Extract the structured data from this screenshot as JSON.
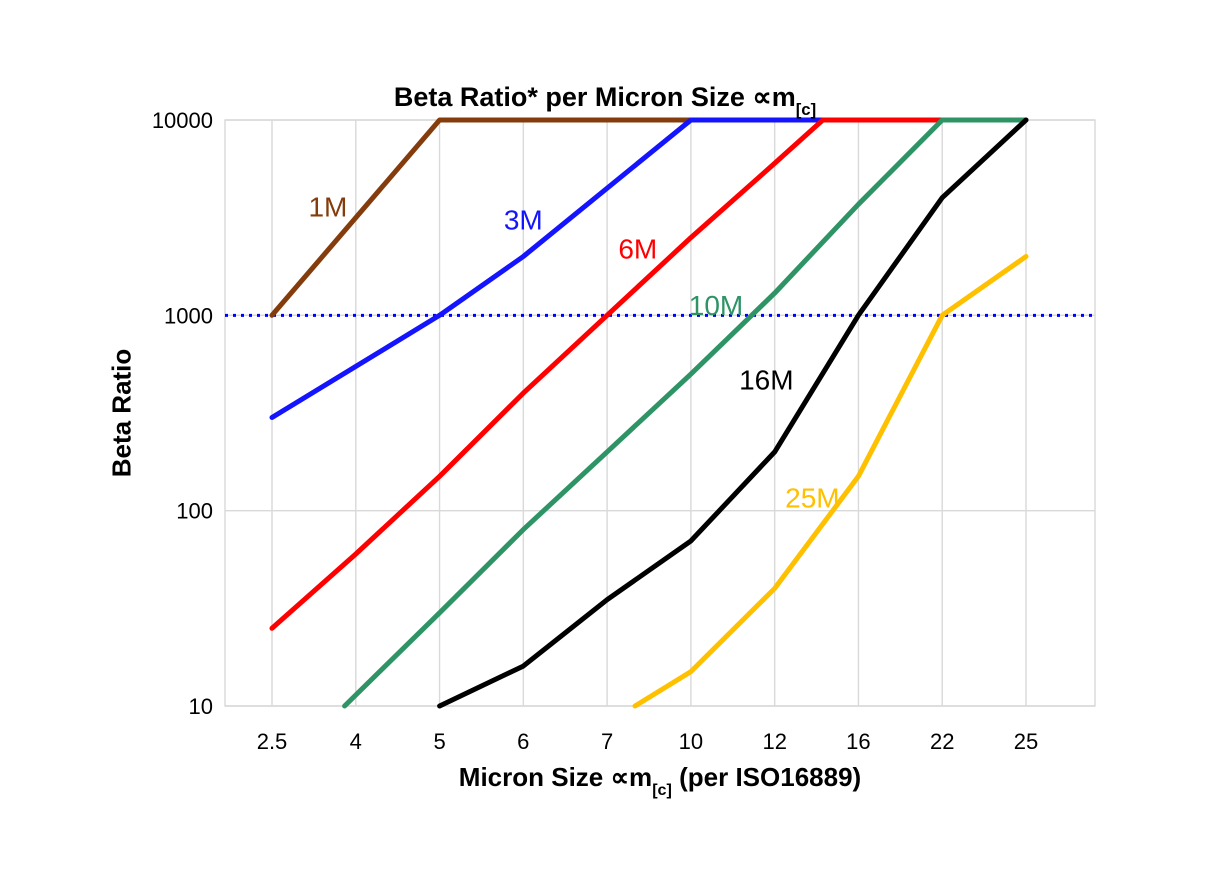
{
  "page": {
    "background": "#ffffff"
  },
  "chart_data": {
    "type": "line",
    "title": {
      "prefix": "Beta Ratio* per Micron Size ",
      "symbol": "∝m",
      "sub": "[c]"
    },
    "xlabel": {
      "prefix": "Micron Size ",
      "symbol": "∝m",
      "sub": "[c]",
      "suffix": " (per ISO16889)"
    },
    "ylabel": "Beta Ratio",
    "x_axis": {
      "scale": "categorical",
      "categories": [
        2.5,
        4,
        5,
        6,
        7,
        10,
        12,
        16,
        22,
        25
      ]
    },
    "y_axis": {
      "scale": "log",
      "min": 10,
      "max": 10000,
      "ticks": [
        10,
        100,
        1000,
        10000
      ]
    },
    "grid": {
      "color": "#d9d9d9",
      "vertical": true,
      "horizontal": true
    },
    "reference_line": {
      "y": 1000,
      "color": "#0000ff",
      "style": "dotted"
    },
    "series": [
      {
        "name": "1M",
        "color": "#843C0C",
        "label_at": {
          "micron": 3.5,
          "beta": 3600
        },
        "points": [
          [
            2.5,
            1000
          ],
          [
            5,
            10000
          ],
          [
            10,
            10000
          ]
        ]
      },
      {
        "name": "3M",
        "color": "#1414FF",
        "label_at": {
          "micron": 6.0,
          "beta": 3100
        },
        "points": [
          [
            2.5,
            300
          ],
          [
            5,
            1000
          ],
          [
            6,
            2000
          ],
          [
            10,
            10000
          ],
          [
            14.3,
            10000
          ]
        ]
      },
      {
        "name": "6M",
        "color": "#FF0000",
        "label_at": {
          "micron": 8.1,
          "beta": 2200
        },
        "points": [
          [
            2.5,
            25
          ],
          [
            4,
            60
          ],
          [
            5,
            150
          ],
          [
            6,
            400
          ],
          [
            7,
            1000
          ],
          [
            10,
            2500
          ],
          [
            12,
            6000
          ],
          [
            14.3,
            10000
          ],
          [
            22,
            10000
          ]
        ]
      },
      {
        "name": "10M",
        "color": "#2E9465",
        "label_at": {
          "micron": 10.6,
          "beta": 1130
        },
        "points": [
          [
            3.8,
            10
          ],
          [
            5,
            30
          ],
          [
            6,
            80
          ],
          [
            7,
            200
          ],
          [
            10,
            500
          ],
          [
            12,
            1300
          ],
          [
            16,
            3700
          ],
          [
            22,
            10000
          ],
          [
            25,
            10000
          ]
        ]
      },
      {
        "name": "16M",
        "color": "#000000",
        "label_at": {
          "micron": 11.8,
          "beta": 470
        },
        "points": [
          [
            5,
            10
          ],
          [
            6,
            16
          ],
          [
            7,
            35
          ],
          [
            10,
            70
          ],
          [
            12,
            200
          ],
          [
            16,
            1000
          ],
          [
            22,
            4000
          ],
          [
            25,
            10000
          ]
        ]
      },
      {
        "name": "25M",
        "color": "#FFC000",
        "label_at": {
          "micron": 13.8,
          "beta": 117
        },
        "points": [
          [
            8,
            10
          ],
          [
            10,
            15
          ],
          [
            12,
            40
          ],
          [
            16,
            150
          ],
          [
            22,
            1000
          ],
          [
            25,
            2000
          ]
        ]
      }
    ]
  }
}
